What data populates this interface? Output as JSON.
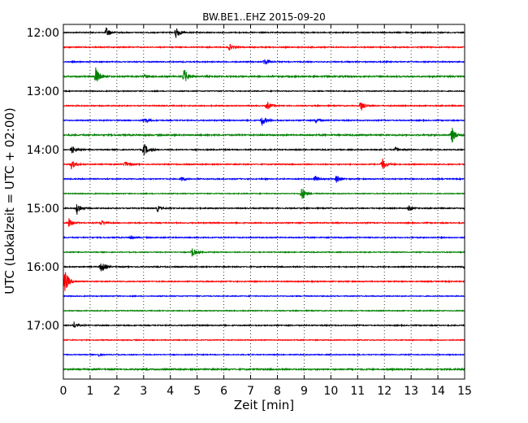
{
  "chart_data": {
    "type": "line",
    "title": "BW.BE1..EHZ 2015-09-20",
    "xlabel": "Zeit  [min]",
    "ylabel": "UTC (Lokalzeit = UTC + 02:00)",
    "xlim": [
      0,
      15
    ],
    "x_ticks": [
      "0",
      "1",
      "2",
      "3",
      "4",
      "5",
      "6",
      "7",
      "8",
      "9",
      "10",
      "11",
      "12",
      "13",
      "14",
      "15"
    ],
    "y_ticks": [
      "12:00",
      "13:00",
      "14:00",
      "15:00",
      "16:00",
      "17:00"
    ],
    "grid": "vertical dotted",
    "trace_colors": [
      "#000000",
      "#ff0000",
      "#0000ff",
      "#008000"
    ],
    "traces": [
      {
        "start": "12:00",
        "color_index": 0,
        "baseline": 0.6,
        "events": [
          [
            1.6,
            7
          ],
          [
            4.2,
            9
          ]
        ]
      },
      {
        "start": "12:15",
        "color_index": 1,
        "baseline": 0.6,
        "events": [
          [
            6.2,
            4
          ]
        ]
      },
      {
        "start": "12:30",
        "color_index": 2,
        "baseline": 0.6,
        "events": [
          [
            7.5,
            5
          ]
        ]
      },
      {
        "start": "12:45",
        "color_index": 3,
        "baseline": 0.8,
        "events": [
          [
            1.2,
            12
          ],
          [
            4.5,
            11
          ],
          [
            3.0,
            3
          ]
        ]
      },
      {
        "start": "13:00",
        "color_index": 0,
        "baseline": 0.5,
        "events": []
      },
      {
        "start": "13:15",
        "color_index": 1,
        "baseline": 0.6,
        "events": [
          [
            7.6,
            6
          ],
          [
            11.1,
            8
          ]
        ]
      },
      {
        "start": "13:30",
        "color_index": 2,
        "baseline": 0.6,
        "events": [
          [
            3.0,
            4
          ],
          [
            7.4,
            8
          ],
          [
            9.4,
            4
          ]
        ]
      },
      {
        "start": "13:45",
        "color_index": 3,
        "baseline": 0.8,
        "events": [
          [
            14.5,
            12
          ]
        ]
      },
      {
        "start": "14:00",
        "color_index": 0,
        "baseline": 0.6,
        "events": [
          [
            0.3,
            6
          ],
          [
            3.0,
            9
          ],
          [
            12.4,
            3
          ]
        ]
      },
      {
        "start": "14:15",
        "color_index": 1,
        "baseline": 0.6,
        "events": [
          [
            0.3,
            6
          ],
          [
            2.3,
            4
          ],
          [
            11.9,
            9
          ]
        ]
      },
      {
        "start": "14:30",
        "color_index": 2,
        "baseline": 0.6,
        "events": [
          [
            4.4,
            3
          ],
          [
            9.4,
            5
          ],
          [
            10.2,
            6
          ]
        ]
      },
      {
        "start": "14:45",
        "color_index": 3,
        "baseline": 0.5,
        "events": [
          [
            8.9,
            10
          ]
        ]
      },
      {
        "start": "15:00",
        "color_index": 0,
        "baseline": 0.6,
        "events": [
          [
            0.5,
            9
          ],
          [
            3.5,
            4
          ],
          [
            12.9,
            4
          ],
          [
            15.0,
            3
          ]
        ]
      },
      {
        "start": "15:15",
        "color_index": 1,
        "baseline": 0.6,
        "events": [
          [
            0.2,
            6
          ],
          [
            1.4,
            4
          ]
        ]
      },
      {
        "start": "15:30",
        "color_index": 2,
        "baseline": 0.6,
        "events": [
          [
            2.5,
            3
          ]
        ]
      },
      {
        "start": "15:45",
        "color_index": 3,
        "baseline": 0.5,
        "events": [
          [
            4.8,
            7
          ]
        ]
      },
      {
        "start": "16:00",
        "color_index": 0,
        "baseline": 0.6,
        "events": [
          [
            1.4,
            9
          ],
          [
            15.0,
            4
          ]
        ]
      },
      {
        "start": "16:15",
        "color_index": 1,
        "baseline": 0.6,
        "events": [
          [
            0.05,
            16
          ]
        ]
      },
      {
        "start": "16:30",
        "color_index": 2,
        "baseline": 0.5,
        "events": []
      },
      {
        "start": "16:45",
        "color_index": 3,
        "baseline": 0.5,
        "events": []
      },
      {
        "start": "17:00",
        "color_index": 0,
        "baseline": 0.6,
        "events": [
          [
            0.4,
            4
          ]
        ]
      },
      {
        "start": "17:15",
        "color_index": 1,
        "baseline": 0.5,
        "events": []
      },
      {
        "start": "17:30",
        "color_index": 2,
        "baseline": 0.5,
        "events": [
          [
            1.3,
            2
          ]
        ]
      },
      {
        "start": "17:45",
        "color_index": 3,
        "baseline": 0.8,
        "events": []
      }
    ]
  }
}
